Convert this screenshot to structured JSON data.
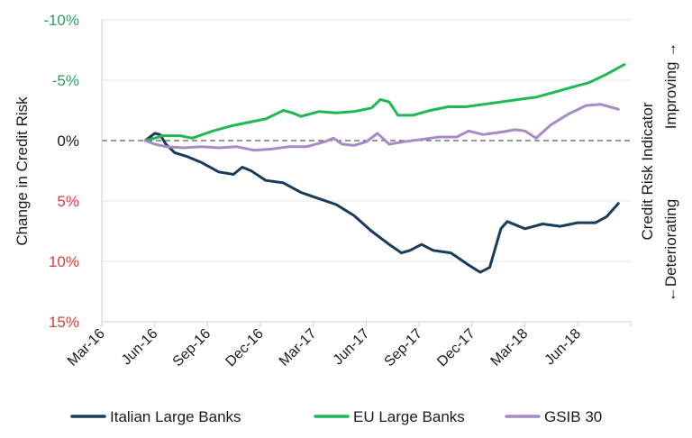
{
  "chart_data": {
    "type": "line",
    "ylabel": "Change in Credit Risk",
    "right_label": {
      "title": "Credit Risk Indicator",
      "up": "Improving →",
      "down": "←Deteriorating"
    },
    "ylim": [
      -10,
      15
    ],
    "y_inverted": true,
    "grid": true,
    "zero_line": "dashed",
    "yticks": [
      {
        "value": -10,
        "label": "-10%",
        "color": "#2e9e5b"
      },
      {
        "value": -5,
        "label": "-5%",
        "color": "#2e9e5b"
      },
      {
        "value": 0,
        "label": "0%",
        "color": "#1a1a1a"
      },
      {
        "value": 5,
        "label": "5%",
        "color": "#e03a3a"
      },
      {
        "value": 10,
        "label": "10%",
        "color": "#e03a3a"
      },
      {
        "value": 15,
        "label": "15%",
        "color": "#e03a3a"
      }
    ],
    "xlim": [
      "2016-03",
      "2018-09"
    ],
    "xticks": [
      "Mar-16",
      "Jun-16",
      "Sep-16",
      "Dec-16",
      "Mar-17",
      "Jun-17",
      "Sep-17",
      "Dec-17",
      "Mar-18",
      "Jun-18"
    ],
    "legend": "bottom",
    "series": [
      {
        "name": "Italian Large Banks",
        "color": "#1b3a5c",
        "points": [
          [
            "2016-05-15",
            0.0
          ],
          [
            "2016-06-01",
            -0.6
          ],
          [
            "2016-06-10",
            -0.5
          ],
          [
            "2016-06-20",
            0.3
          ],
          [
            "2016-07-05",
            1.0
          ],
          [
            "2016-07-25",
            1.3
          ],
          [
            "2016-08-20",
            1.8
          ],
          [
            "2016-09-20",
            2.6
          ],
          [
            "2016-10-15",
            2.8
          ],
          [
            "2016-10-30",
            2.2
          ],
          [
            "2016-11-15",
            2.5
          ],
          [
            "2016-12-10",
            3.3
          ],
          [
            "2017-01-10",
            3.5
          ],
          [
            "2017-02-10",
            4.3
          ],
          [
            "2017-03-10",
            4.8
          ],
          [
            "2017-04-10",
            5.3
          ],
          [
            "2017-05-10",
            6.2
          ],
          [
            "2017-06-10",
            7.5
          ],
          [
            "2017-07-10",
            8.6
          ],
          [
            "2017-08-01",
            9.3
          ],
          [
            "2017-08-15",
            9.1
          ],
          [
            "2017-09-05",
            8.6
          ],
          [
            "2017-09-25",
            9.1
          ],
          [
            "2017-10-25",
            9.3
          ],
          [
            "2017-11-25",
            10.3
          ],
          [
            "2017-12-15",
            10.9
          ],
          [
            "2018-01-01",
            10.5
          ],
          [
            "2018-01-20",
            7.3
          ],
          [
            "2018-02-01",
            6.7
          ],
          [
            "2018-03-01",
            7.3
          ],
          [
            "2018-04-01",
            6.9
          ],
          [
            "2018-05-01",
            7.1
          ],
          [
            "2018-06-01",
            6.8
          ],
          [
            "2018-07-01",
            6.8
          ],
          [
            "2018-07-20",
            6.3
          ],
          [
            "2018-08-10",
            5.2
          ]
        ]
      },
      {
        "name": "EU Large Banks",
        "color": "#1db954",
        "points": [
          [
            "2016-05-15",
            0.0
          ],
          [
            "2016-06-01",
            -0.2
          ],
          [
            "2016-06-15",
            -0.4
          ],
          [
            "2016-07-15",
            -0.4
          ],
          [
            "2016-08-05",
            -0.2
          ],
          [
            "2016-09-10",
            -0.8
          ],
          [
            "2016-10-10",
            -1.2
          ],
          [
            "2016-11-10",
            -1.5
          ],
          [
            "2016-12-10",
            -1.8
          ],
          [
            "2017-01-10",
            -2.5
          ],
          [
            "2017-01-25",
            -2.3
          ],
          [
            "2017-02-10",
            -2.0
          ],
          [
            "2017-03-10",
            -2.4
          ],
          [
            "2017-04-10",
            -2.3
          ],
          [
            "2017-05-10",
            -2.4
          ],
          [
            "2017-06-10",
            -2.7
          ],
          [
            "2017-06-25",
            -3.4
          ],
          [
            "2017-07-10",
            -3.2
          ],
          [
            "2017-07-25",
            -2.1
          ],
          [
            "2017-08-20",
            -2.1
          ],
          [
            "2017-09-20",
            -2.5
          ],
          [
            "2017-10-20",
            -2.8
          ],
          [
            "2017-11-20",
            -2.8
          ],
          [
            "2017-12-20",
            -3.0
          ],
          [
            "2018-01-20",
            -3.2
          ],
          [
            "2018-02-20",
            -3.4
          ],
          [
            "2018-03-20",
            -3.6
          ],
          [
            "2018-04-20",
            -4.0
          ],
          [
            "2018-05-20",
            -4.4
          ],
          [
            "2018-06-20",
            -4.8
          ],
          [
            "2018-07-20",
            -5.5
          ],
          [
            "2018-08-20",
            -6.3
          ]
        ]
      },
      {
        "name": "GSIB 30",
        "color": "#a48cc6",
        "points": [
          [
            "2016-05-15",
            0.0
          ],
          [
            "2016-06-01",
            0.3
          ],
          [
            "2016-06-20",
            0.5
          ],
          [
            "2016-07-20",
            0.6
          ],
          [
            "2016-08-20",
            0.5
          ],
          [
            "2016-09-20",
            0.6
          ],
          [
            "2016-10-20",
            0.5
          ],
          [
            "2016-11-20",
            0.8
          ],
          [
            "2016-12-20",
            0.7
          ],
          [
            "2017-01-20",
            0.5
          ],
          [
            "2017-02-20",
            0.5
          ],
          [
            "2017-03-20",
            0.1
          ],
          [
            "2017-04-05",
            -0.2
          ],
          [
            "2017-04-20",
            0.3
          ],
          [
            "2017-05-10",
            0.4
          ],
          [
            "2017-06-01",
            0.1
          ],
          [
            "2017-06-20",
            -0.6
          ],
          [
            "2017-07-10",
            0.3
          ],
          [
            "2017-08-05",
            0.1
          ],
          [
            "2017-09-05",
            -0.1
          ],
          [
            "2017-10-05",
            -0.3
          ],
          [
            "2017-11-05",
            -0.3
          ],
          [
            "2017-11-25",
            -0.8
          ],
          [
            "2017-12-20",
            -0.5
          ],
          [
            "2018-01-20",
            -0.7
          ],
          [
            "2018-02-15",
            -0.9
          ],
          [
            "2018-03-01",
            -0.8
          ],
          [
            "2018-03-20",
            -0.2
          ],
          [
            "2018-04-15",
            -1.3
          ],
          [
            "2018-05-15",
            -2.2
          ],
          [
            "2018-06-15",
            -2.9
          ],
          [
            "2018-07-10",
            -3.0
          ],
          [
            "2018-08-10",
            -2.6
          ]
        ]
      }
    ]
  }
}
